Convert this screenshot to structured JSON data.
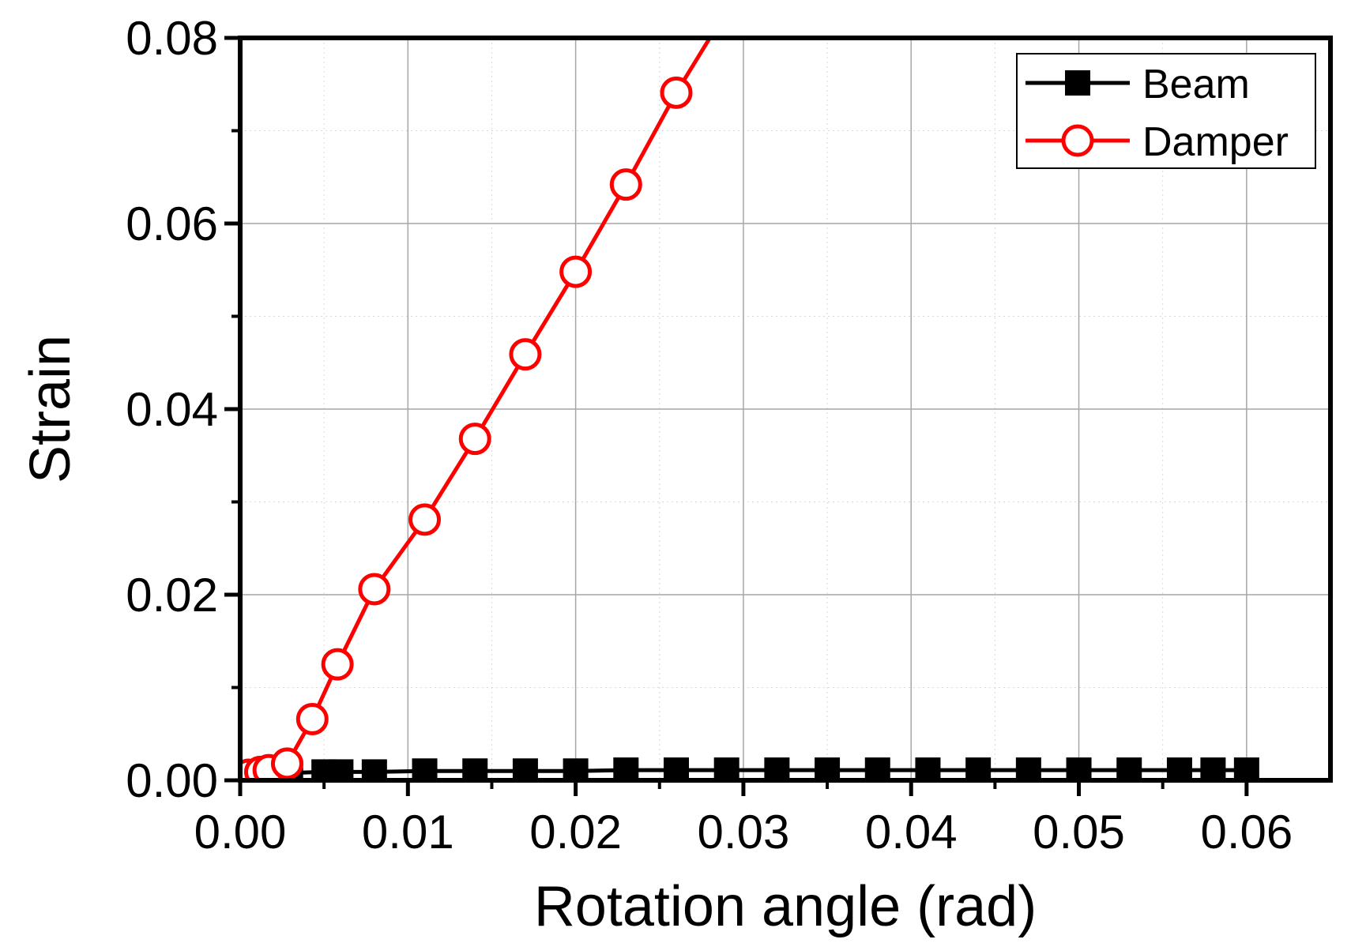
{
  "chart_data": {
    "type": "line",
    "xlabel": "Rotation angle (rad)",
    "ylabel": "Strain",
    "xlim": [
      0,
      0.065
    ],
    "ylim": [
      0,
      0.08
    ],
    "x_ticks": [
      "0.00",
      "0.01",
      "0.02",
      "0.03",
      "0.04",
      "0.05",
      "0.06"
    ],
    "y_ticks": [
      "0.00",
      "0.02",
      "0.04",
      "0.06",
      "0.08"
    ],
    "x_tick_values": [
      0,
      0.01,
      0.02,
      0.03,
      0.04,
      0.05,
      0.06
    ],
    "y_tick_values": [
      0,
      0.02,
      0.04,
      0.06,
      0.08
    ],
    "grid": true,
    "legend_position": "top-right",
    "series": [
      {
        "name": "Beam",
        "color": "#000000",
        "marker": "filled-square",
        "x": [
          0.0005,
          0.001,
          0.002,
          0.003,
          0.005,
          0.006,
          0.008,
          0.011,
          0.014,
          0.017,
          0.02,
          0.023,
          0.026,
          0.029,
          0.032,
          0.035,
          0.038,
          0.041,
          0.044,
          0.047,
          0.05,
          0.053,
          0.056,
          0.058,
          0.06
        ],
        "y": [
          0.0005,
          0.0007,
          0.0008,
          0.0008,
          0.0009,
          0.0009,
          0.0009,
          0.001,
          0.001,
          0.001,
          0.001,
          0.0011,
          0.0011,
          0.0011,
          0.0011,
          0.0011,
          0.0011,
          0.0011,
          0.0011,
          0.0011,
          0.0011,
          0.0011,
          0.0011,
          0.0011,
          0.0011
        ]
      },
      {
        "name": "Damper",
        "color": "#ff0000",
        "marker": "open-circle",
        "x": [
          0.0005,
          0.0012,
          0.0017,
          0.0028,
          0.0043,
          0.0058,
          0.008,
          0.011,
          0.014,
          0.017,
          0.02,
          0.023,
          0.026,
          0.028
        ],
        "y": [
          0.0006,
          0.0009,
          0.0011,
          0.0018,
          0.0066,
          0.0125,
          0.0206,
          0.0281,
          0.0368,
          0.0459,
          0.0548,
          0.0642,
          0.0741,
          0.08
        ]
      }
    ]
  }
}
